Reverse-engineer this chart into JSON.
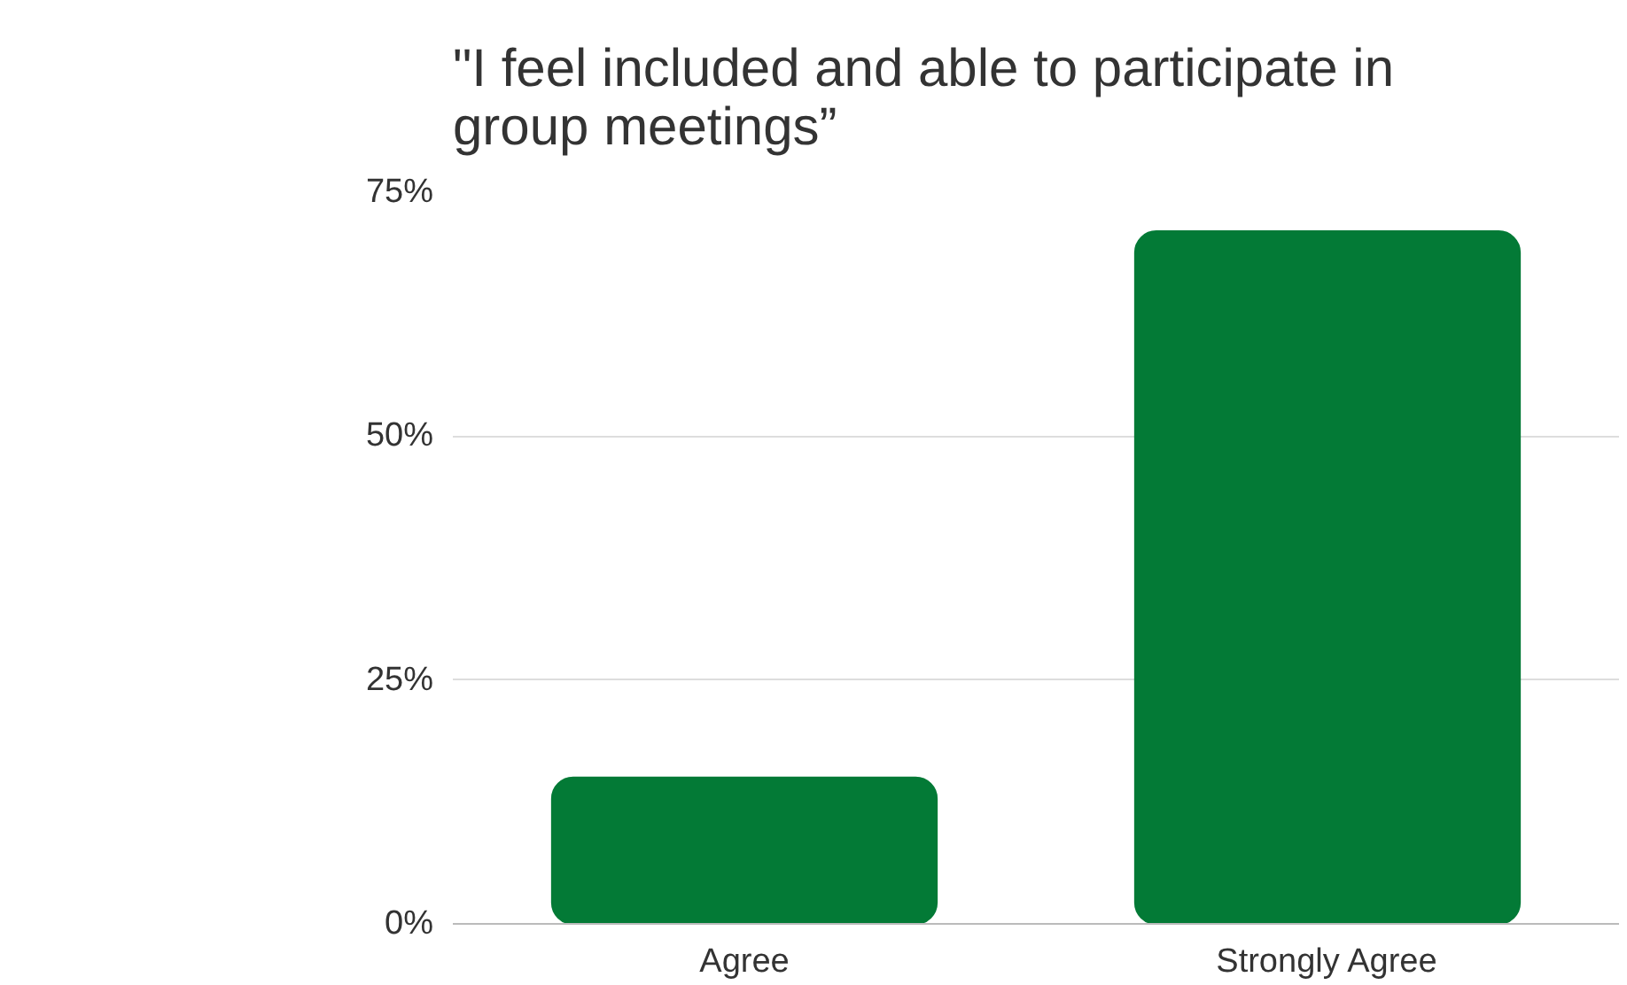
{
  "chart_data": {
    "type": "bar",
    "title": "\"I feel included and able to participate in\ngroup meetings”",
    "categories": [
      "Agree",
      "Strongly Agree"
    ],
    "values": [
      15,
      71
    ],
    "color": "#037a36",
    "ylim": [
      0,
      75
    ],
    "yticks": [
      {
        "value": 0,
        "label": "0%"
      },
      {
        "value": 25,
        "label": "25%"
      },
      {
        "value": 50,
        "label": "50%"
      },
      {
        "value": 75,
        "label": "75%"
      }
    ],
    "grid": "y"
  }
}
